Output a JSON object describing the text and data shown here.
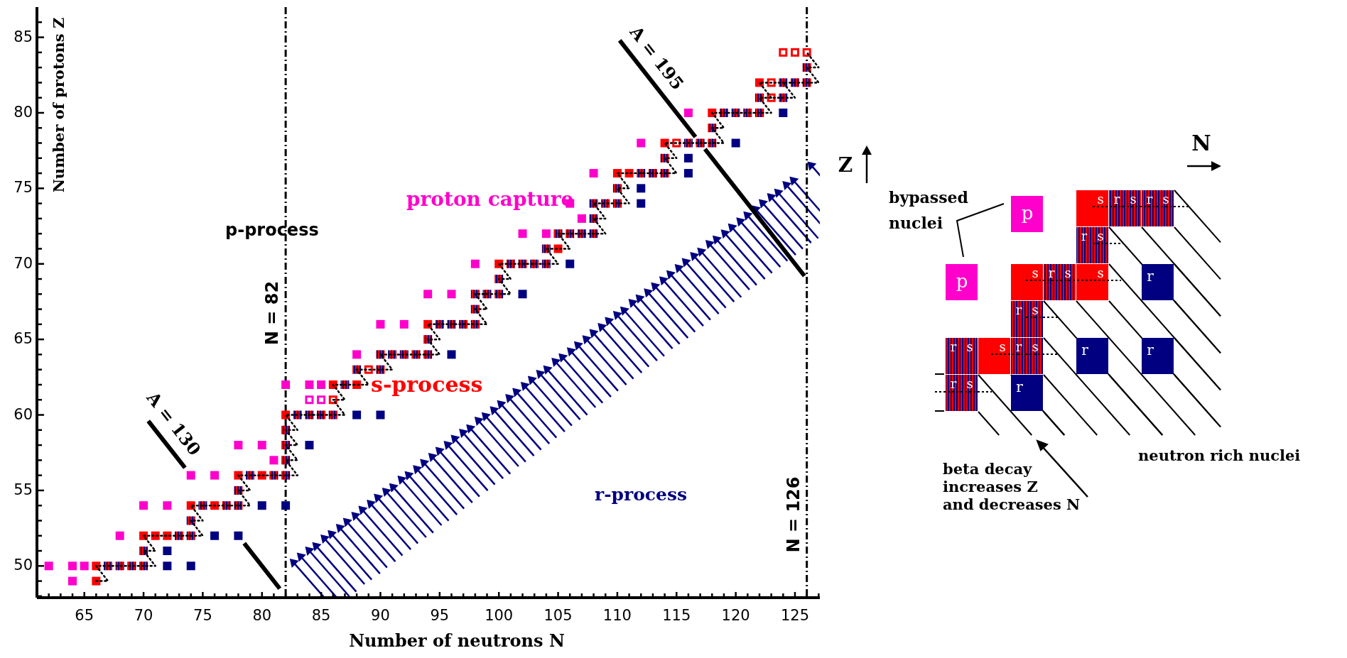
{
  "chart_data": [
    {
      "type": "scatter",
      "xlabel": "Number of neutrons N",
      "ylabel": "Number of protons Z",
      "xlim": [
        61,
        127.1
      ],
      "ylim": [
        47.9,
        87
      ],
      "xticks": [
        {
          "value": 62,
          "label": null
        },
        {
          "value": 63,
          "label": null
        },
        {
          "value": 64,
          "label": null
        },
        65,
        {
          "value": 66,
          "label": null
        },
        {
          "value": 67,
          "label": null
        },
        {
          "value": 68,
          "label": null
        },
        {
          "value": 69,
          "label": null
        },
        70,
        {
          "value": 71,
          "label": null
        },
        {
          "value": 72,
          "label": null
        },
        {
          "value": 73,
          "label": null
        },
        {
          "value": 74,
          "label": null
        },
        75,
        {
          "value": 76,
          "label": null
        },
        {
          "value": 77,
          "label": null
        },
        {
          "value": 78,
          "label": null
        },
        {
          "value": 79,
          "label": null
        },
        80,
        {
          "value": 81,
          "label": null
        },
        {
          "value": 82,
          "label": null
        },
        {
          "value": 83,
          "label": null
        },
        {
          "value": 84,
          "label": null
        },
        85,
        {
          "value": 86,
          "label": null
        },
        {
          "value": 87,
          "label": null
        },
        {
          "value": 88,
          "label": null
        },
        {
          "value": 89,
          "label": null
        },
        90,
        {
          "value": 91,
          "label": null
        },
        {
          "value": 92,
          "label": null
        },
        {
          "value": 93,
          "label": null
        },
        {
          "value": 94,
          "label": null
        },
        95,
        {
          "value": 96,
          "label": null
        },
        {
          "value": 97,
          "label": null
        },
        {
          "value": 98,
          "label": null
        },
        {
          "value": 99,
          "label": null
        },
        100,
        {
          "value": 101,
          "label": null
        },
        {
          "value": 102,
          "label": null
        },
        {
          "value": 103,
          "label": null
        },
        {
          "value": 104,
          "label": null
        },
        105,
        {
          "value": 106,
          "label": null
        },
        {
          "value": 107,
          "label": null
        },
        {
          "value": 108,
          "label": null
        },
        {
          "value": 109,
          "label": null
        },
        110,
        {
          "value": 111,
          "label": null
        },
        {
          "value": 112,
          "label": null
        },
        {
          "value": 113,
          "label": null
        },
        {
          "value": 114,
          "label": null
        },
        115,
        {
          "value": 116,
          "label": null
        },
        {
          "value": 117,
          "label": null
        },
        {
          "value": 118,
          "label": null
        },
        {
          "value": 119,
          "label": null
        },
        120,
        {
          "value": 121,
          "label": null
        },
        {
          "value": 122,
          "label": null
        },
        {
          "value": 123,
          "label": null
        },
        {
          "value": 124,
          "label": null
        },
        125,
        {
          "value": 126,
          "label": null
        },
        {
          "value": 127,
          "label": null
        }
      ],
      "yticks": [
        {
          "value": 48,
          "label": null
        },
        {
          "value": 49,
          "label": null
        },
        50,
        {
          "value": 51,
          "label": null
        },
        {
          "value": 52,
          "label": null
        },
        {
          "value": 53,
          "label": null
        },
        {
          "value": 54,
          "label": null
        },
        55,
        {
          "value": 56,
          "label": null
        },
        {
          "value": 57,
          "label": null
        },
        {
          "value": 58,
          "label": null
        },
        {
          "value": 59,
          "label": null
        },
        60,
        {
          "value": 61,
          "label": null
        },
        {
          "value": 62,
          "label": null
        },
        {
          "value": 63,
          "label": null
        },
        {
          "value": 64,
          "label": null
        },
        65,
        {
          "value": 66,
          "label": null
        },
        {
          "value": 67,
          "label": null
        },
        {
          "value": 68,
          "label": null
        },
        {
          "value": 69,
          "label": null
        },
        70,
        {
          "value": 71,
          "label": null
        },
        {
          "value": 72,
          "label": null
        },
        {
          "value": 73,
          "label": null
        },
        {
          "value": 74,
          "label": null
        },
        75,
        {
          "value": 76,
          "label": null
        },
        {
          "value": 77,
          "label": null
        },
        {
          "value": 78,
          "label": null
        },
        {
          "value": 79,
          "label": null
        },
        80,
        {
          "value": 81,
          "label": null
        },
        {
          "value": 82,
          "label": null
        },
        {
          "value": 83,
          "label": null
        },
        {
          "value": 84,
          "label": null
        },
        85,
        {
          "value": 86,
          "label": null
        }
      ],
      "series": [
        {
          "type": "scatter",
          "marker": "square",
          "color": "#ff00cc",
          "x": [
            62,
            64,
            65,
            64,
            68,
            70,
            72,
            74,
            76,
            81,
            78,
            80,
            82,
            84,
            85,
            88,
            90,
            92,
            94,
            96,
            98,
            102,
            104,
            106,
            107,
            108,
            112,
            116
          ],
          "values": [
            50,
            50,
            50,
            49,
            52,
            54,
            54,
            56,
            56,
            57,
            58,
            58,
            62,
            62,
            62,
            64,
            66,
            66,
            68,
            68,
            70,
            72,
            72,
            74,
            73,
            76,
            78,
            80
          ]
        },
        {
          "type": "scatter",
          "marker": "square",
          "color": "#ff0000",
          "x": [
            66,
            66,
            70,
            71,
            72,
            74,
            76,
            78,
            80,
            82,
            86,
            88,
            94,
            100,
            105,
            110,
            111,
            114,
            118,
            122
          ],
          "values": [
            49,
            50,
            52,
            52,
            52,
            54,
            54,
            56,
            56,
            60,
            62,
            62,
            66,
            70,
            71,
            76,
            76,
            78,
            80,
            82
          ]
        },
        {
          "type": "scatter",
          "marker": "square",
          "color": "#000080",
          "x": [
            67,
            68,
            69,
            70,
            70,
            73,
            74,
            74,
            75,
            77,
            78,
            78,
            79,
            81,
            82,
            82,
            82,
            82,
            83,
            84,
            85,
            86,
            87,
            88,
            90,
            90,
            91,
            92,
            93,
            94,
            94,
            95,
            96,
            97,
            98,
            98,
            98,
            99,
            100,
            100,
            101,
            102,
            103,
            104,
            104,
            105,
            106,
            107,
            108,
            108,
            108,
            109,
            110,
            110,
            112,
            113,
            114,
            114,
            116,
            117,
            118,
            118,
            119,
            120,
            121,
            122,
            122,
            124,
            124,
            125,
            126,
            126
          ],
          "values": [
            50,
            50,
            50,
            50,
            51,
            52,
            52,
            53,
            54,
            54,
            54,
            55,
            56,
            56,
            56,
            57,
            58,
            59,
            60,
            60,
            60,
            60,
            62,
            63,
            63,
            64,
            64,
            64,
            64,
            64,
            65,
            66,
            66,
            66,
            66,
            67,
            68,
            68,
            68,
            69,
            70,
            70,
            70,
            70,
            71,
            72,
            72,
            72,
            72,
            73,
            74,
            74,
            74,
            75,
            76,
            76,
            76,
            77,
            78,
            78,
            78,
            79,
            80,
            80,
            80,
            80,
            81,
            81,
            82,
            82,
            82,
            83
          ]
        },
        {
          "type": "scatter",
          "marker": "square",
          "color": "#000080",
          "x": [
            72,
            74,
            72,
            76,
            78,
            80,
            82,
            84,
            88,
            90,
            96,
            102,
            106,
            112,
            112,
            116,
            116,
            120,
            124
          ],
          "values": [
            50,
            50,
            51,
            52,
            52,
            54,
            54,
            58,
            60,
            60,
            64,
            68,
            70,
            74,
            75,
            76,
            77,
            78,
            80
          ]
        },
        {
          "type": "scatter",
          "marker": "square",
          "color": "#ff00cc",
          "x": [
            84,
            85
          ],
          "values": [
            61,
            61
          ]
        },
        {
          "type": "scatter",
          "marker": "square",
          "color": "#ff0000",
          "x": [
            86,
            89,
            115,
            123,
            123,
            124,
            125,
            126
          ],
          "values": [
            61,
            63,
            78,
            81,
            82,
            84,
            84,
            84
          ]
        },
        {
          "type": "scatter",
          "marker": "triangle",
          "color": "#000080",
          "x": [
            82.7,
            83.3,
            84.0,
            84.6,
            85.3,
            85.9,
            86.6,
            87.2,
            87.9,
            88.5,
            89.2,
            89.8,
            90.5,
            91.1,
            91.8,
            92.4,
            93.1,
            93.7,
            94.4,
            95.0,
            95.7,
            96.3,
            97.0,
            97.6,
            98.3,
            98.9,
            99.6,
            100.2,
            100.9,
            101.5,
            102.2,
            102.8,
            103.5,
            104.1,
            104.8,
            105.4,
            106.1,
            106.7,
            107.4,
            108.0,
            108.7,
            109.3,
            110.0,
            110.6,
            111.3,
            111.9,
            112.6,
            113.2,
            113.9,
            114.5,
            115.2,
            115.8,
            116.5,
            117.1,
            117.8,
            118.4,
            119.1,
            119.7,
            120.4,
            121.0,
            121.7,
            122.3,
            123.0,
            123.6,
            124.3,
            124.9,
            126.4
          ],
          "values": [
            50.2,
            50.6,
            51.0,
            51.3,
            51.8,
            52.1,
            52.5,
            52.9,
            53.3,
            53.7,
            54.1,
            54.5,
            54.9,
            55.2,
            55.7,
            56.0,
            56.4,
            56.8,
            57.2,
            57.6,
            58.0,
            58.4,
            58.8,
            59.1,
            59.6,
            59.9,
            60.3,
            60.7,
            61.1,
            61.5,
            61.9,
            62.3,
            62.7,
            63.0,
            63.5,
            63.8,
            64.2,
            64.6,
            65.0,
            65.4,
            65.8,
            66.2,
            66.6,
            66.9,
            67.4,
            67.7,
            68.1,
            68.5,
            68.9,
            69.3,
            69.7,
            70.1,
            70.5,
            70.8,
            71.3,
            71.6,
            72.0,
            72.4,
            72.8,
            73.2,
            73.6,
            74.0,
            74.4,
            74.7,
            75.2,
            75.5,
            76.5
          ]
        },
        {
          "type": "line",
          "color": "#000000",
          "line_style": "dotted",
          "x": [
            66,
            67,
            66,
            71,
            70,
            71,
            70,
            75,
            74,
            75,
            74,
            79,
            78,
            79,
            78,
            83,
            82,
            83,
            82,
            83,
            82,
            83,
            82,
            87,
            86,
            87,
            86,
            89,
            88,
            91,
            90,
            95,
            94,
            95,
            94,
            99,
            98,
            99,
            98,
            101,
            100,
            101,
            100,
            105,
            104,
            106,
            105,
            109,
            108,
            109,
            108,
            111,
            110,
            111,
            110,
            115,
            114,
            115,
            114,
            119,
            118,
            119,
            118,
            123,
            122,
            125,
            124,
            127,
            126,
            127,
            126,
            null,
            123,
            122,
            124
          ],
          "values": [
            49,
            49,
            50,
            50,
            51,
            51,
            52,
            52,
            53,
            53,
            54,
            54,
            55,
            55,
            56,
            56,
            57,
            57,
            58,
            58,
            59,
            59,
            60,
            60,
            61,
            61,
            62,
            62,
            63,
            63,
            64,
            64,
            65,
            65,
            66,
            66,
            67,
            67,
            68,
            68,
            69,
            69,
            70,
            70,
            71,
            71,
            72,
            72,
            73,
            73,
            74,
            74,
            75,
            75,
            76,
            76,
            77,
            77,
            78,
            78,
            79,
            79,
            80,
            80,
            81,
            81,
            82,
            82,
            83,
            83,
            84,
            null,
            81,
            82,
            82
          ]
        },
        {
          "type": "line",
          "name": "A = 130",
          "color": "#000000",
          "line_style": "solid",
          "x": [
            70.4,
            73.5,
            null,
            78.5,
            81.5
          ],
          "values": [
            59.6,
            56.5,
            null,
            51.5,
            48.5
          ]
        },
        {
          "type": "line",
          "name": "A = 195",
          "color": "#000000",
          "line_style": "solid",
          "x": [
            110.2,
            116.6,
            null,
            117.4,
            125.8
          ],
          "values": [
            84.8,
            78.4,
            null,
            77.6,
            69.2
          ]
        }
      ],
      "ref_lines": [
        {
          "axis": "x",
          "value": 82,
          "label": "N = 82",
          "color": "#000000",
          "line_style": "dashed"
        },
        {
          "axis": "x",
          "value": 126,
          "label": "N = 126",
          "color": "#000000",
          "line_style": "dashed"
        }
      ],
      "annotations": [
        "p-process",
        "proton capture",
        "s-process",
        "r-process"
      ]
    },
    {
      "type": "other",
      "annotations": [
        "Z",
        "N",
        "bypassed nuclei",
        "beta decay increases Z and decreases N",
        "neutron rich nuclei",
        "p",
        "s",
        "r"
      ]
    }
  ]
}
